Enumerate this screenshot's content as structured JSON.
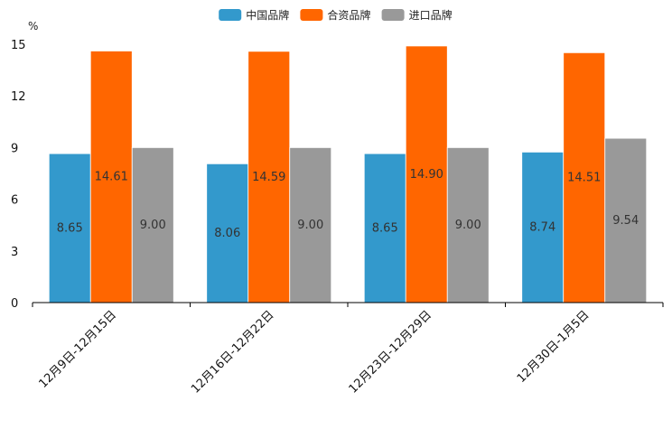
{
  "chart_data": {
    "type": "bar",
    "title": "",
    "xlabel": "",
    "ylabel": "%",
    "ylim": [
      0,
      15
    ],
    "yticks": [
      0,
      3,
      6,
      9,
      12,
      15
    ],
    "legend_position": "top-center",
    "grid": false,
    "categories": [
      "12月9日-12月15日",
      "12月16日-12月22日",
      "12月23日-12月29日",
      "12月30日-1月5日"
    ],
    "series": [
      {
        "name": "中国品牌",
        "color": "#3399cc",
        "values": [
          8.65,
          8.06,
          8.65,
          8.74
        ]
      },
      {
        "name": "合资品牌",
        "color": "#ff6600",
        "values": [
          14.61,
          14.59,
          14.9,
          14.51
        ]
      },
      {
        "name": "进口品牌",
        "color": "#999999",
        "values": [
          9.0,
          9.0,
          9.0,
          9.54
        ]
      }
    ]
  }
}
